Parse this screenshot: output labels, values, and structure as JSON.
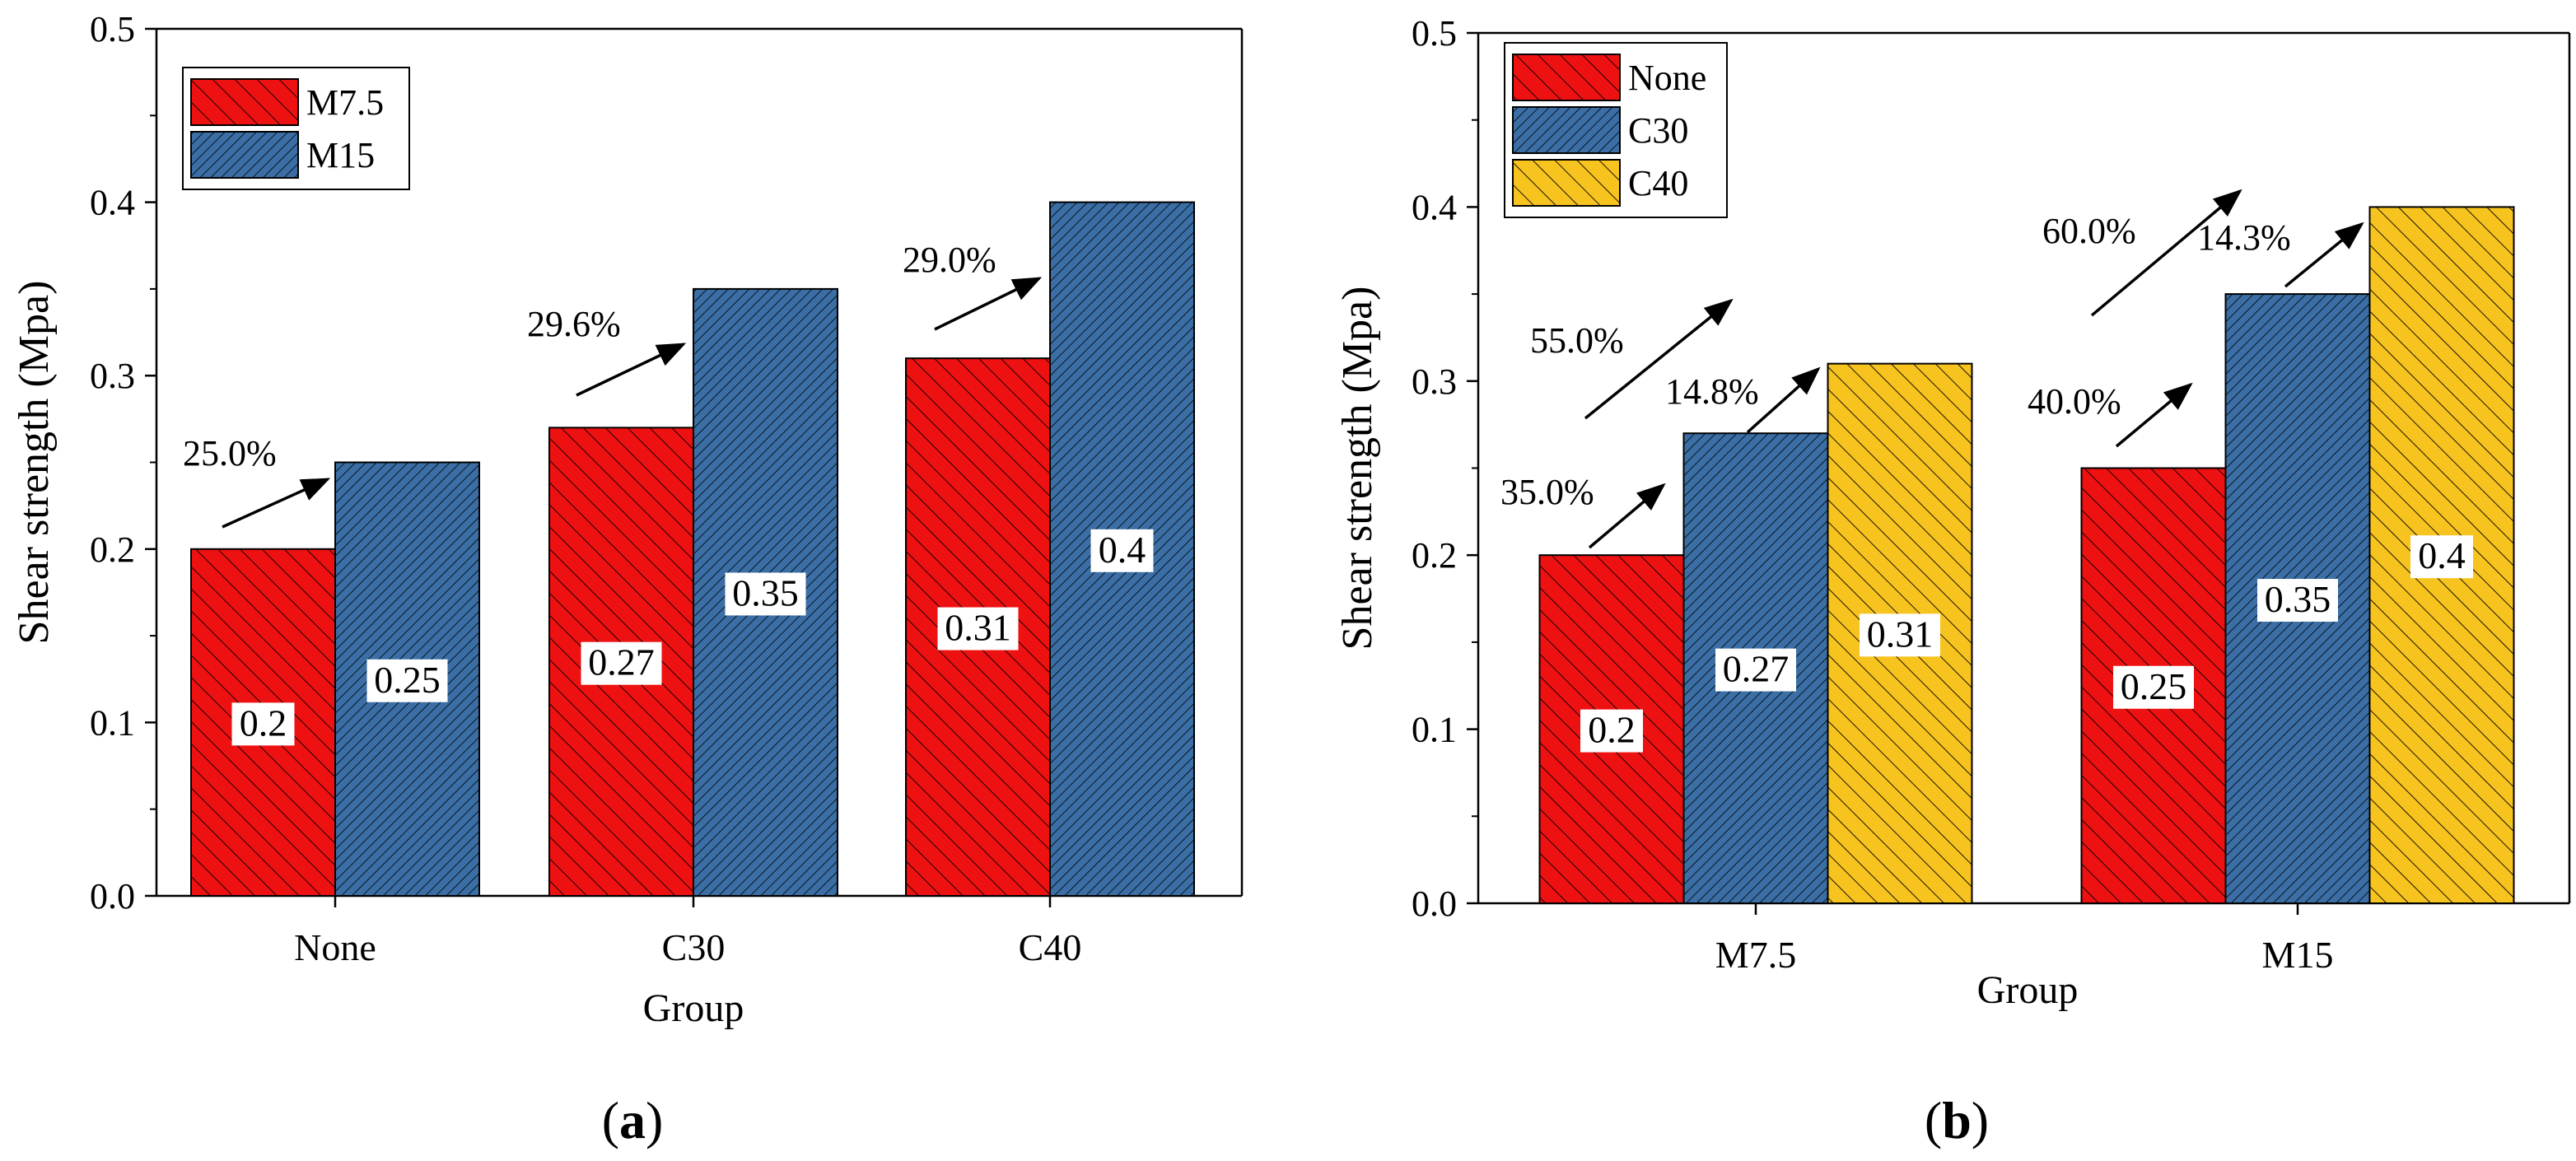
{
  "figure": {
    "panels": [
      {
        "label_prefix": "(",
        "label_letter": "a",
        "label_suffix": ")"
      },
      {
        "label_prefix": "(",
        "label_letter": "b",
        "label_suffix": ")"
      }
    ]
  },
  "chart_data": [
    {
      "type": "bar",
      "panel": "a",
      "title": "",
      "xlabel": "Group",
      "ylabel": "Shear strength (Mpa)",
      "ylim": [
        0,
        0.5
      ],
      "yticks": [
        "0.0",
        "0.1",
        "0.2",
        "0.3",
        "0.4",
        "0.5"
      ],
      "categories": [
        "None",
        "C30",
        "C40"
      ],
      "series": [
        {
          "name": "M7.5",
          "values": [
            0.2,
            0.27,
            0.31
          ],
          "labels": [
            "0.2",
            "0.27",
            "0.31"
          ],
          "color": "#ee1111",
          "hatch": "sparse"
        },
        {
          "name": "M15",
          "values": [
            0.25,
            0.35,
            0.4
          ],
          "labels": [
            "0.25",
            "0.35",
            "0.4"
          ],
          "color": "#3a6ea5",
          "hatch": "dense"
        }
      ],
      "legend_position": "top-left",
      "grid": false,
      "annotations": [
        {
          "text": "25.0%",
          "from_series": 0,
          "to_series": 1,
          "category": 0
        },
        {
          "text": "29.6%",
          "from_series": 0,
          "to_series": 1,
          "category": 1
        },
        {
          "text": "29.0%",
          "from_series": 0,
          "to_series": 1,
          "category": 2
        }
      ]
    },
    {
      "type": "bar",
      "panel": "b",
      "title": "",
      "xlabel": "Group",
      "ylabel": "Shear strength (Mpa)",
      "ylim": [
        0,
        0.5
      ],
      "yticks": [
        "0.0",
        "0.1",
        "0.2",
        "0.3",
        "0.4",
        "0.5"
      ],
      "categories": [
        "M7.5",
        "M15"
      ],
      "series": [
        {
          "name": "None",
          "values": [
            0.2,
            0.25
          ],
          "labels": [
            "0.2",
            "0.25"
          ],
          "color": "#ee1111",
          "hatch": "sparse"
        },
        {
          "name": "C30",
          "values": [
            0.27,
            0.35
          ],
          "labels": [
            "0.27",
            "0.35"
          ],
          "color": "#3a6ea5",
          "hatch": "dense"
        },
        {
          "name": "C40",
          "values": [
            0.31,
            0.4
          ],
          "labels": [
            "0.31",
            "0.4"
          ],
          "color": "#f7c31e",
          "hatch": "sparse"
        }
      ],
      "legend_position": "top-left",
      "grid": false,
      "annotations": [
        {
          "text": "35.0%",
          "from_series": 0,
          "to_series": 1,
          "category": 0
        },
        {
          "text": "14.8%",
          "from_series": 1,
          "to_series": 2,
          "category": 0
        },
        {
          "text": "55.0%",
          "from_series": 0,
          "to_series": 2,
          "category": 0
        },
        {
          "text": "40.0%",
          "from_series": 0,
          "to_series": 1,
          "category": 1
        },
        {
          "text": "14.3%",
          "from_series": 1,
          "to_series": 2,
          "category": 1
        },
        {
          "text": "60.0%",
          "from_series": 0,
          "to_series": 2,
          "category": 1
        }
      ]
    }
  ]
}
